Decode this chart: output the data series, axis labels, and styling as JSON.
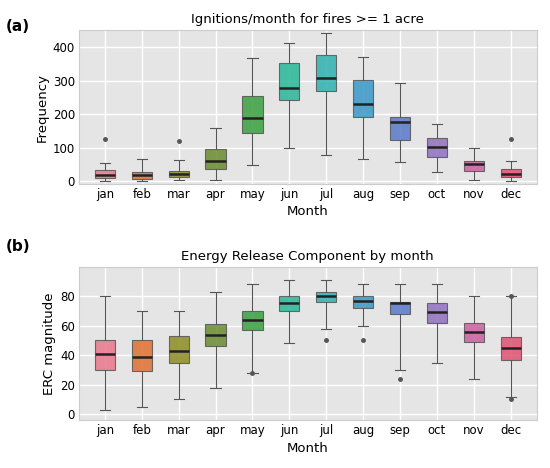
{
  "title_a": "Ignitions/month for fires >= 1 acre",
  "title_b": "Energy Release Component by month",
  "months": [
    "jan",
    "feb",
    "mar",
    "apr",
    "may",
    "jun",
    "jul",
    "aug",
    "sep",
    "oct",
    "nov",
    "dec"
  ],
  "xlabel": "Month",
  "ylabel_a": "Frequency",
  "ylabel_b": "ERC magnitude",
  "label_a": "(a)",
  "label_b": "(b)",
  "colors": [
    "#e8778a",
    "#e07030",
    "#8c8c28",
    "#6a8c30",
    "#38a040",
    "#28b898",
    "#30b0b0",
    "#3898c8",
    "#5878c8",
    "#9070c0",
    "#c860a0",
    "#e05070"
  ],
  "plot_a": {
    "jan": {
      "whislo": 1,
      "q1": 10,
      "med": 20,
      "q3": 35,
      "whishi": 55,
      "fliers_hi": [
        125
      ],
      "fliers_lo": []
    },
    "feb": {
      "whislo": 1,
      "q1": 8,
      "med": 18,
      "q3": 28,
      "whishi": 68,
      "fliers_hi": [],
      "fliers_lo": []
    },
    "mar": {
      "whislo": 5,
      "q1": 14,
      "med": 22,
      "q3": 32,
      "whishi": 65,
      "fliers_hi": [
        120
      ],
      "fliers_lo": []
    },
    "apr": {
      "whislo": 5,
      "q1": 38,
      "med": 62,
      "q3": 95,
      "whishi": 158,
      "fliers_hi": [],
      "fliers_lo": []
    },
    "may": {
      "whislo": 48,
      "q1": 145,
      "med": 190,
      "q3": 255,
      "whishi": 368,
      "fliers_hi": [],
      "fliers_lo": []
    },
    "jun": {
      "whislo": 98,
      "q1": 242,
      "med": 278,
      "q3": 352,
      "whishi": 412,
      "fliers_hi": [],
      "fliers_lo": []
    },
    "jul": {
      "whislo": 78,
      "q1": 268,
      "med": 308,
      "q3": 378,
      "whishi": 442,
      "fliers_hi": [],
      "fliers_lo": []
    },
    "aug": {
      "whislo": 68,
      "q1": 192,
      "med": 232,
      "q3": 302,
      "whishi": 372,
      "fliers_hi": [],
      "fliers_lo": []
    },
    "sep": {
      "whislo": 58,
      "q1": 122,
      "med": 178,
      "q3": 192,
      "whishi": 292,
      "fliers_hi": [],
      "fliers_lo": []
    },
    "oct": {
      "whislo": 28,
      "q1": 72,
      "med": 102,
      "q3": 128,
      "whishi": 172,
      "fliers_hi": [],
      "fliers_lo": []
    },
    "nov": {
      "whislo": 5,
      "q1": 32,
      "med": 52,
      "q3": 62,
      "whishi": 98,
      "fliers_hi": [],
      "fliers_lo": []
    },
    "dec": {
      "whislo": 1,
      "q1": 14,
      "med": 22,
      "q3": 38,
      "whishi": 62,
      "fliers_hi": [
        125
      ],
      "fliers_lo": []
    }
  },
  "plot_b": {
    "jan": {
      "whislo": 3,
      "q1": 30,
      "med": 41,
      "q3": 50,
      "whishi": 80,
      "fliers_hi": [],
      "fliers_lo": []
    },
    "feb": {
      "whislo": 5,
      "q1": 29,
      "med": 39,
      "q3": 50,
      "whishi": 70,
      "fliers_hi": [],
      "fliers_lo": []
    },
    "mar": {
      "whislo": 10,
      "q1": 35,
      "med": 43,
      "q3": 53,
      "whishi": 70,
      "fliers_hi": [],
      "fliers_lo": []
    },
    "apr": {
      "whislo": 18,
      "q1": 46,
      "med": 54,
      "q3": 61,
      "whishi": 83,
      "fliers_hi": [],
      "fliers_lo": []
    },
    "may": {
      "whislo": 28,
      "q1": 57,
      "med": 64,
      "q3": 70,
      "whishi": 88,
      "fliers_hi": [],
      "fliers_lo": [
        28
      ]
    },
    "jun": {
      "whislo": 48,
      "q1": 70,
      "med": 75,
      "q3": 80,
      "whishi": 91,
      "fliers_hi": [],
      "fliers_lo": []
    },
    "jul": {
      "whislo": 58,
      "q1": 76,
      "med": 80,
      "q3": 83,
      "whishi": 91,
      "fliers_hi": [],
      "fliers_lo": [
        50
      ]
    },
    "aug": {
      "whislo": 60,
      "q1": 72,
      "med": 77,
      "q3": 80,
      "whishi": 88,
      "fliers_hi": [],
      "fliers_lo": [
        50
      ]
    },
    "sep": {
      "whislo": 30,
      "q1": 68,
      "med": 75,
      "q3": 76,
      "whishi": 88,
      "fliers_hi": [],
      "fliers_lo": [
        24
      ]
    },
    "oct": {
      "whislo": 35,
      "q1": 62,
      "med": 69,
      "q3": 75,
      "whishi": 88,
      "fliers_hi": [],
      "fliers_lo": []
    },
    "nov": {
      "whislo": 24,
      "q1": 49,
      "med": 56,
      "q3": 62,
      "whishi": 80,
      "fliers_hi": [],
      "fliers_lo": []
    },
    "dec": {
      "whislo": 12,
      "q1": 37,
      "med": 45,
      "q3": 52,
      "whishi": 80,
      "fliers_hi": [
        80
      ],
      "fliers_lo": [
        10
      ]
    }
  },
  "ylim_a": [
    -8,
    450
  ],
  "ylim_b": [
    -4,
    100
  ],
  "yticks_a": [
    0,
    100,
    200,
    300,
    400
  ],
  "yticks_b": [
    0,
    20,
    40,
    60,
    80
  ],
  "axes_bg": "#e5e5e5",
  "fig_bg": "#ffffff",
  "grid_color": "#ffffff",
  "spine_color": "#cccccc",
  "figsize": [
    5.5,
    4.68
  ],
  "dpi": 100
}
